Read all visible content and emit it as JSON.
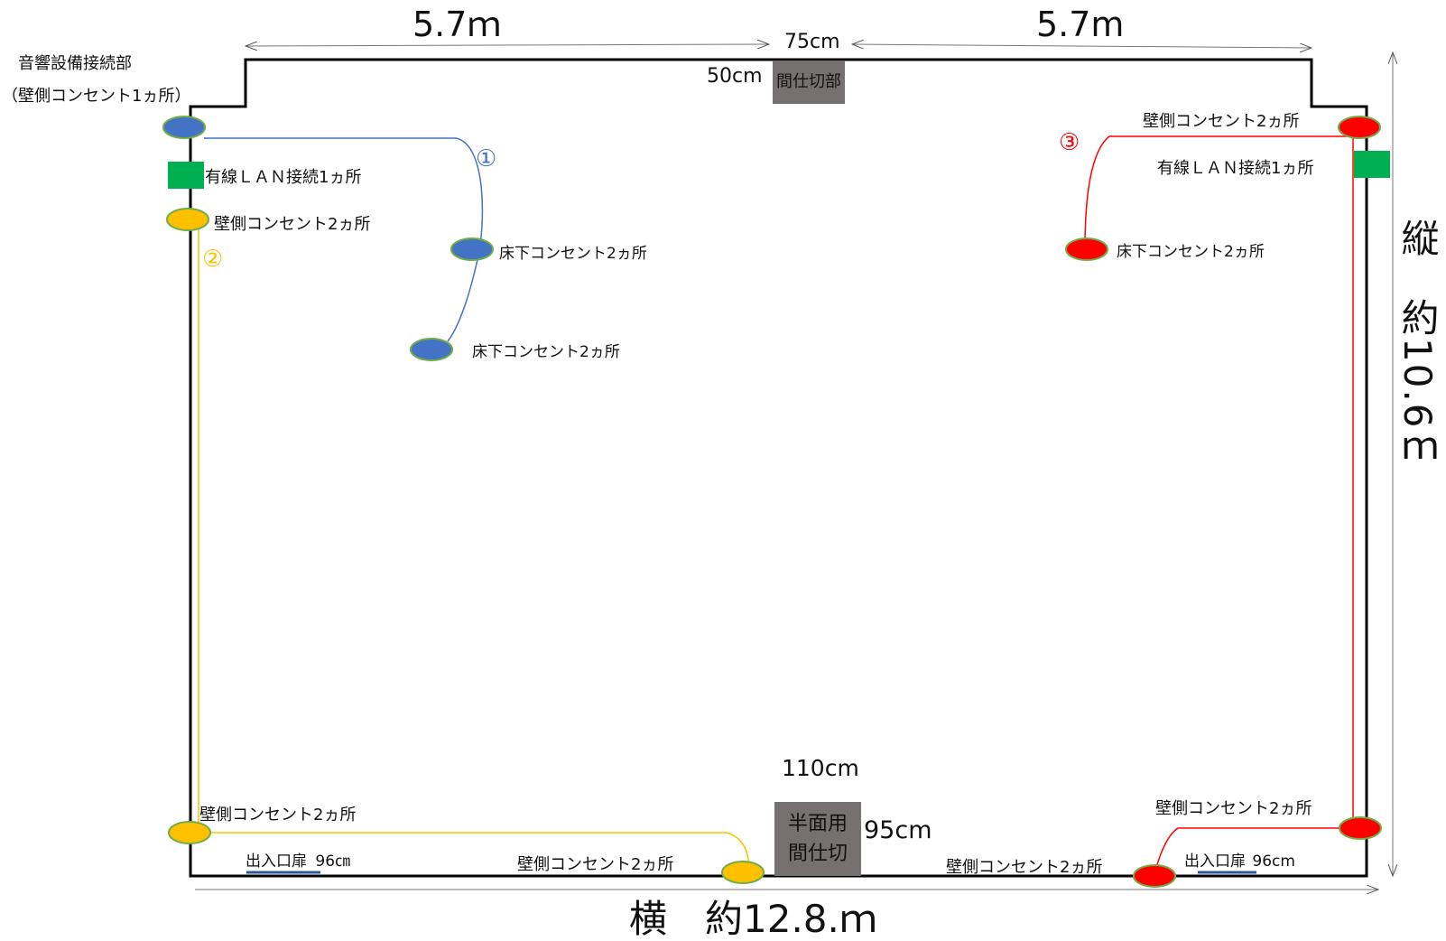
{
  "dimensions": {
    "top_left_width": "5.7ｍ",
    "top_right_width": "5.7m",
    "top_gap": "75cm",
    "top_partition_depth": "50cm",
    "bottom_partition_width": "110cm",
    "bottom_partition_depth": "95cm",
    "total_width": "横　約12.8.ｍ",
    "total_height": "縦　約10.6ｍ"
  },
  "partitions": {
    "top_label": "間仕切部",
    "bottom_label_line1": "半面用",
    "bottom_label_line2": "間仕切"
  },
  "labels": {
    "audio_title": "音響設備接続部",
    "audio_sub": "（壁側コンセント1ヵ所）",
    "lan_left": "有線ＬＡＮ接続1ヵ所",
    "lan_right": "有線ＬＡＮ接続1ヵ所",
    "wall_outlet_left_upper": "壁側コンセント2ヵ所",
    "floor_outlet_blue_1": "床下コンセント2ヵ所",
    "floor_outlet_blue_2": "床下コンセント2ヵ所",
    "wall_outlet_right_top": "壁側コンセント2ヵ所",
    "floor_outlet_red": "床下コンセント2ヵ所",
    "wall_outlet_left_bottom": "壁側コンセント2ヵ所",
    "wall_outlet_bottom_mid": "壁側コンセント2ヵ所",
    "wall_outlet_bottom_right": "壁側コンセント2ヵ所",
    "wall_outlet_right_bottom": "壁側コンセント2ヵ所",
    "door_left": "出入口扉",
    "door_left_size": "96㎝",
    "door_right": "出入口扉",
    "door_right_size": "96cm"
  },
  "circuits": {
    "one": "①",
    "two": "②",
    "three": "③"
  },
  "colors": {
    "circuit_blue": "#4472c4",
    "circuit_yellow": "#ffc000",
    "circuit_red": "#ff0000",
    "lan_green": "#00b050",
    "partition_gray": "#767171",
    "door_line": "#2f5597"
  }
}
